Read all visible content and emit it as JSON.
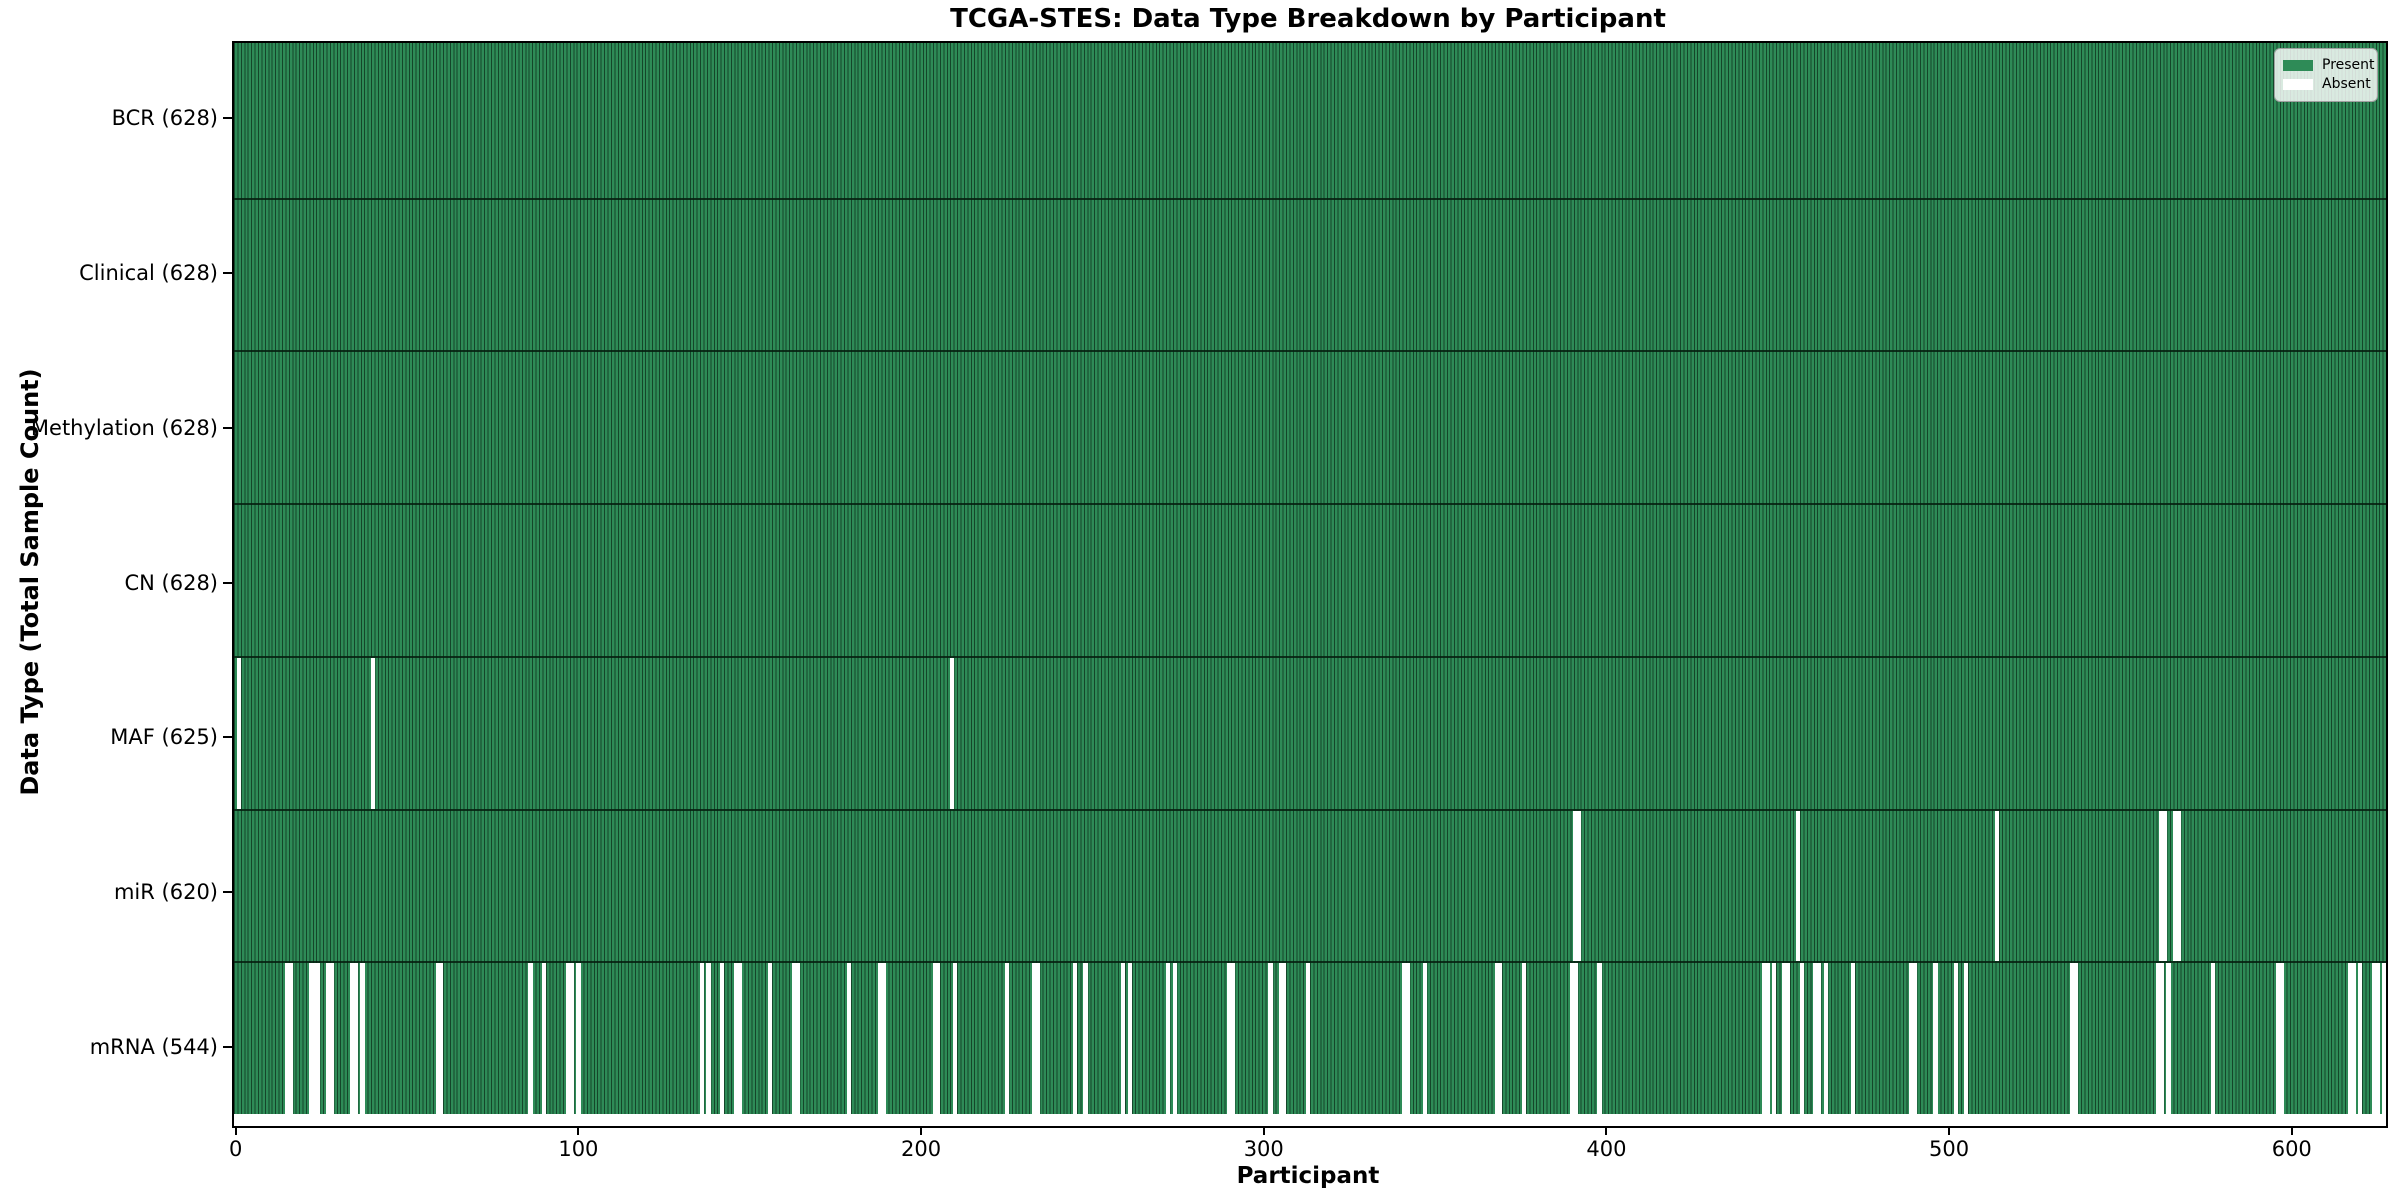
{
  "figure": {
    "title": "TCGA-STES: Data Type Breakdown by Participant",
    "x_axis_label": "Participant",
    "y_axis_label": "Data Type (Total Sample Count)"
  },
  "legend": {
    "items": [
      {
        "label": "Present",
        "color": "#2E8B57"
      },
      {
        "label": "Absent",
        "color": "#FFFFFF"
      }
    ]
  },
  "colors": {
    "present": "#2E8B57",
    "absent": "#FFFFFF",
    "bar_edge": "#14462a",
    "frame": "#000000",
    "legend_bg": "#eef4ee",
    "legend_border": "#a0a0a0"
  },
  "chart_data": {
    "type": "heatmap",
    "title": "TCGA-STES: Data Type Breakdown by Participant",
    "xlabel": "Participant",
    "ylabel": "Data Type (Total Sample Count)",
    "legend": [
      "Present",
      "Absent"
    ],
    "legend_position": "upper right",
    "grid": false,
    "n_participants": 628,
    "x_range": [
      0,
      628
    ],
    "x_ticks": [
      0,
      100,
      200,
      300,
      400,
      500,
      600
    ],
    "rows": [
      {
        "name": "BCR",
        "label": "BCR (628)",
        "total": 628,
        "absent": []
      },
      {
        "name": "Clinical",
        "label": "Clinical (628)",
        "total": 628,
        "absent": []
      },
      {
        "name": "Methylation",
        "label": "Methylation (628)",
        "total": 628,
        "absent": []
      },
      {
        "name": "CN",
        "label": "CN (628)",
        "total": 628,
        "absent": []
      },
      {
        "name": "MAF",
        "label": "MAF (625)",
        "total": 625,
        "absent": [
          1,
          40,
          209
        ]
      },
      {
        "name": "miR",
        "label": "miR (620)",
        "total": 620,
        "absent": [
          391,
          392,
          456,
          514,
          562,
          563,
          566,
          567
        ]
      },
      {
        "name": "mRNA",
        "label": "mRNA (544)",
        "total": 544,
        "absent": [
          15,
          16,
          22,
          23,
          24,
          27,
          28,
          34,
          35,
          37,
          59,
          60,
          86,
          90,
          97,
          98,
          100,
          136,
          138,
          142,
          146,
          147,
          156,
          163,
          164,
          179,
          188,
          189,
          204,
          205,
          210,
          225,
          233,
          234,
          245,
          248,
          259,
          261,
          272,
          274,
          290,
          291,
          302,
          305,
          306,
          313,
          341,
          342,
          347,
          368,
          369,
          376,
          390,
          391,
          398,
          446,
          447,
          449,
          452,
          453,
          457,
          461,
          462,
          464,
          472,
          489,
          490,
          496,
          502,
          505,
          536,
          537,
          561,
          562,
          564,
          577,
          596,
          597,
          617,
          618,
          620,
          624,
          625,
          627
        ]
      }
    ]
  }
}
